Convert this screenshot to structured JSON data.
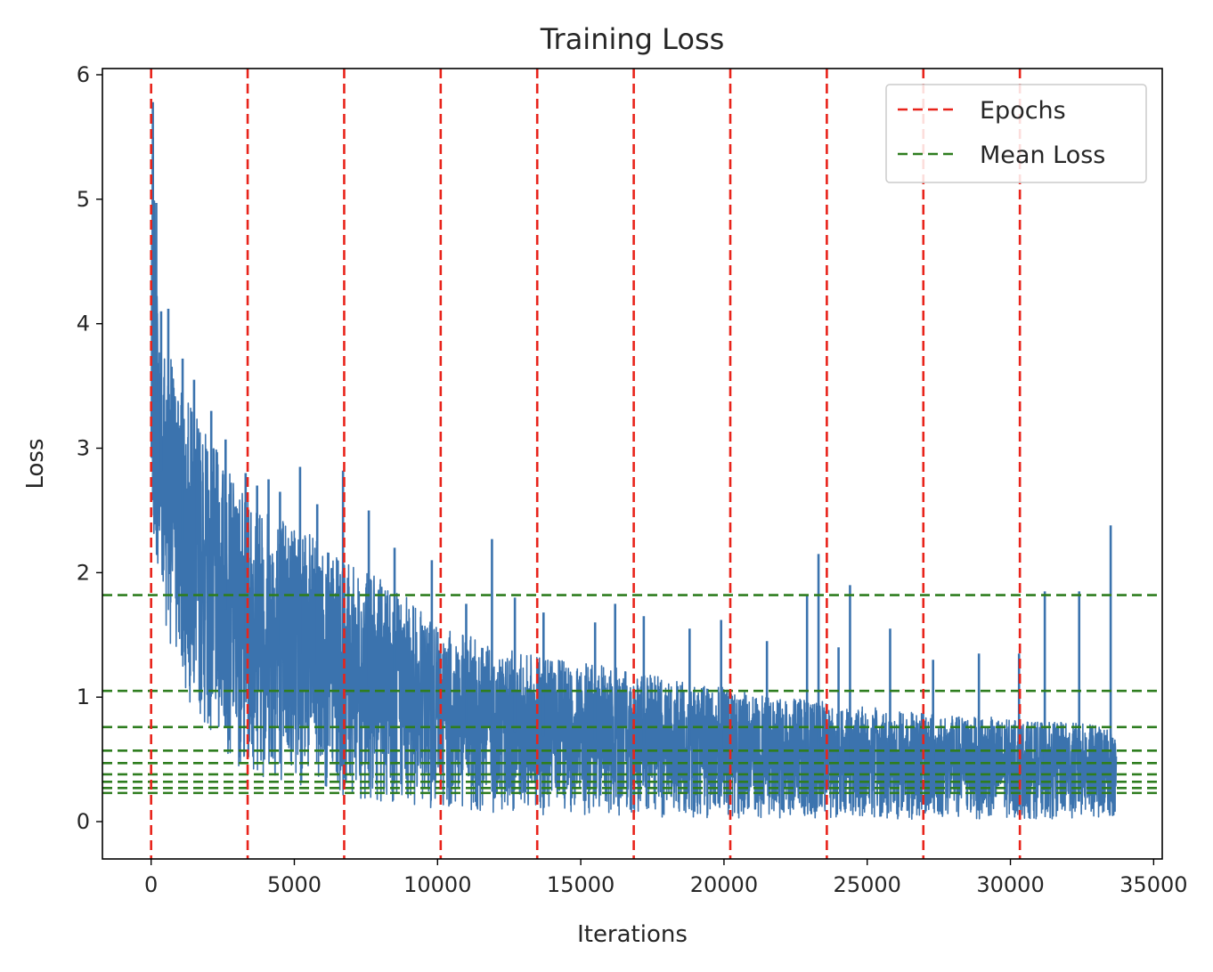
{
  "chart_data": {
    "type": "line",
    "title": "Training Loss",
    "xlabel": "Iterations",
    "ylabel": "Loss",
    "xlim": [
      -1700,
      35300
    ],
    "ylim": [
      -0.3,
      6.05
    ],
    "xticks": [
      0,
      5000,
      10000,
      15000,
      20000,
      25000,
      30000,
      35000
    ],
    "yticks": [
      0,
      1,
      2,
      3,
      4,
      5,
      6
    ],
    "x_range": [
      0,
      33700
    ],
    "grid": false,
    "legend_position": "top-right",
    "series": [
      {
        "color": "#3b73ae",
        "envelope": {
          "x": [
            0,
            50,
            150,
            300,
            600,
            1000,
            1500,
            2000,
            3000,
            4000,
            5000,
            6000,
            7000,
            8000,
            9000,
            10000,
            11000,
            12000,
            13000,
            14000,
            15000,
            16000,
            17000,
            18000,
            19000,
            20000,
            21000,
            22000,
            23000,
            24000,
            25000,
            26000,
            27000,
            28000,
            29000,
            30000,
            31000,
            32000,
            33000,
            33700
          ],
          "upper": [
            4.0,
            5.75,
            4.9,
            3.9,
            3.8,
            3.5,
            3.3,
            3.1,
            2.7,
            2.55,
            2.45,
            2.2,
            2.05,
            1.95,
            1.8,
            1.55,
            1.5,
            1.42,
            1.35,
            1.3,
            1.28,
            1.25,
            1.2,
            1.15,
            1.1,
            1.08,
            1.02,
            1.0,
            0.98,
            0.95,
            0.92,
            0.9,
            0.88,
            0.85,
            0.85,
            0.82,
            0.8,
            0.8,
            0.78,
            0.7
          ],
          "lower": [
            2.2,
            2.2,
            2.1,
            1.8,
            1.5,
            1.1,
            0.9,
            0.7,
            0.45,
            0.35,
            0.3,
            0.25,
            0.2,
            0.16,
            0.12,
            0.1,
            0.08,
            0.07,
            0.06,
            0.05,
            0.05,
            0.04,
            0.04,
            0.03,
            0.03,
            0.03,
            0.03,
            0.03,
            0.02,
            0.02,
            0.02,
            0.02,
            0.02,
            0.02,
            0.02,
            0.02,
            0.02,
            0.02,
            0.02,
            0.02
          ]
        },
        "spikes": [
          [
            60,
            5.78
          ],
          [
            180,
            4.97
          ],
          [
            350,
            4.1
          ],
          [
            600,
            4.12
          ],
          [
            1100,
            3.72
          ],
          [
            1500,
            3.55
          ],
          [
            2100,
            3.3
          ],
          [
            2600,
            3.07
          ],
          [
            3300,
            2.8
          ],
          [
            3700,
            2.7
          ],
          [
            4100,
            2.75
          ],
          [
            4500,
            2.65
          ],
          [
            5200,
            2.85
          ],
          [
            5800,
            2.55
          ],
          [
            6700,
            2.82
          ],
          [
            7600,
            2.5
          ],
          [
            8500,
            2.2
          ],
          [
            9800,
            2.1
          ],
          [
            11000,
            1.75
          ],
          [
            11900,
            2.27
          ],
          [
            12700,
            1.8
          ],
          [
            13700,
            1.68
          ],
          [
            15500,
            1.6
          ],
          [
            16200,
            1.75
          ],
          [
            17200,
            1.65
          ],
          [
            18800,
            1.55
          ],
          [
            19900,
            1.62
          ],
          [
            21500,
            1.45
          ],
          [
            22900,
            1.82
          ],
          [
            23300,
            2.15
          ],
          [
            24000,
            1.4
          ],
          [
            24400,
            1.9
          ],
          [
            25800,
            1.55
          ],
          [
            27300,
            1.3
          ],
          [
            28900,
            1.35
          ],
          [
            30300,
            1.35
          ],
          [
            31200,
            1.85
          ],
          [
            32400,
            1.85
          ],
          [
            33500,
            2.38
          ]
        ]
      }
    ],
    "vlines": {
      "label": "Epochs",
      "color": "#e8231a",
      "x": [
        0,
        3370,
        6740,
        10110,
        13480,
        16850,
        20220,
        23590,
        26960,
        30330
      ]
    },
    "hlines": {
      "label": "Mean Loss",
      "color": "#2e7d1f",
      "y": [
        1.82,
        1.05,
        0.76,
        0.57,
        0.47,
        0.38,
        0.32,
        0.27,
        0.23
      ]
    }
  }
}
